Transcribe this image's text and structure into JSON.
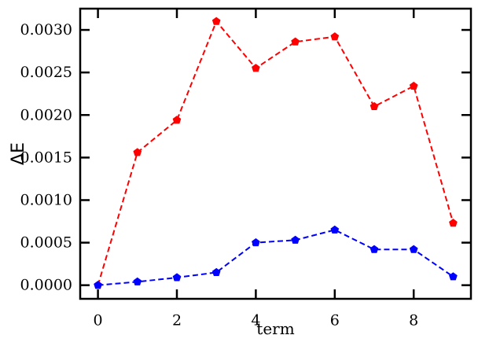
{
  "chart_data": {
    "type": "line",
    "title": "",
    "xlabel": "term",
    "ylabel": "ΔE",
    "x": [
      0,
      1,
      2,
      3,
      4,
      5,
      6,
      7,
      8,
      9
    ],
    "xlim": [
      -0.45,
      9.45
    ],
    "ylim": [
      -0.00016,
      0.00325
    ],
    "xticks": [
      0,
      2,
      4,
      6,
      8
    ],
    "xtick_labels": [
      "0",
      "2",
      "4",
      "6",
      "8"
    ],
    "yticks": [
      0.0,
      0.0005,
      0.001,
      0.0015,
      0.002,
      0.0025,
      0.003
    ],
    "ytick_labels": [
      "0.0000",
      "0.0005",
      "0.0010",
      "0.0015",
      "0.0020",
      "0.0025",
      "0.0030"
    ],
    "grid": false,
    "legend": "none",
    "series": [
      {
        "color": "#ff0000",
        "line_style": "dashed",
        "marker": "pentagon",
        "values": [
          0.0,
          0.00156,
          0.00194,
          0.0031,
          0.00255,
          0.00286,
          0.00292,
          0.0021,
          0.00234,
          0.00073
        ]
      },
      {
        "color": "#0000ff",
        "line_style": "dashed",
        "marker": "pentagon",
        "values": [
          0.0,
          4e-05,
          9e-05,
          0.00015,
          0.0005,
          0.00053,
          0.00065,
          0.00042,
          0.00042,
          0.0001
        ]
      }
    ]
  }
}
